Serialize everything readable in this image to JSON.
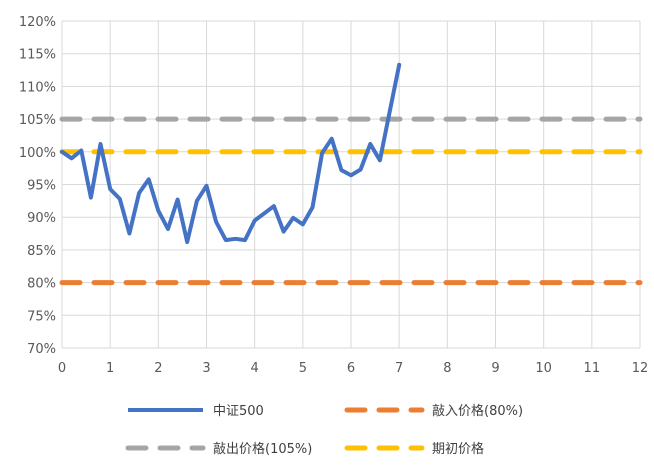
{
  "chart_data": {
    "type": "line",
    "title": "",
    "xlabel": "",
    "ylabel": "",
    "xlim": [
      0,
      12
    ],
    "ylim": [
      0.7,
      1.2
    ],
    "x_ticks": [
      "0",
      "1",
      "2",
      "3",
      "4",
      "5",
      "6",
      "7",
      "8",
      "9",
      "10",
      "11",
      "12"
    ],
    "y_ticks": [
      "70%",
      "75%",
      "80%",
      "85%",
      "90%",
      "95%",
      "100%",
      "105%",
      "110%",
      "115%",
      "120%"
    ],
    "grid": true,
    "legend_position": "bottom",
    "series": [
      {
        "name": "中证500",
        "color": "#4472C4",
        "style": "solid",
        "x": [
          0,
          0.2,
          0.4,
          0.6,
          0.8,
          1.0,
          1.2,
          1.4,
          1.6,
          1.8,
          2.0,
          2.2,
          2.4,
          2.6,
          2.8,
          3.0,
          3.2,
          3.4,
          3.6,
          3.8,
          4.0,
          4.2,
          4.4,
          4.6,
          4.8,
          5.0,
          5.2,
          5.4,
          5.6,
          5.8,
          6.0,
          6.2,
          6.4,
          6.6,
          6.8,
          7.0
        ],
        "y": [
          1.0,
          0.99,
          1.002,
          0.93,
          1.012,
          0.943,
          0.928,
          0.875,
          0.937,
          0.958,
          0.91,
          0.882,
          0.927,
          0.862,
          0.925,
          0.948,
          0.893,
          0.865,
          0.867,
          0.865,
          0.895,
          0.906,
          0.917,
          0.878,
          0.899,
          0.889,
          0.915,
          0.998,
          1.02,
          0.972,
          0.964,
          0.973,
          1.012,
          0.987,
          1.06,
          1.133
        ]
      },
      {
        "name": "敲入价格(80%)",
        "color": "#ED7D31",
        "style": "dashed",
        "x": [
          0,
          12
        ],
        "y": [
          0.8,
          0.8
        ]
      },
      {
        "name": "敲出价格(105%)",
        "color": "#A5A5A5",
        "style": "dashed",
        "x": [
          0,
          12
        ],
        "y": [
          1.05,
          1.05
        ]
      },
      {
        "name": "期初价格",
        "color": "#FFC000",
        "style": "dashed",
        "x": [
          0,
          12
        ],
        "y": [
          1.0,
          1.0
        ]
      }
    ]
  }
}
